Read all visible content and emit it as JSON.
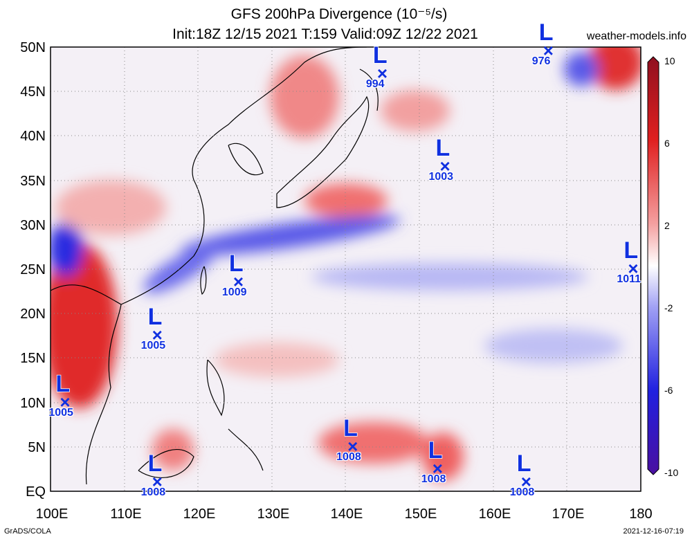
{
  "header": {
    "title_line1": "GFS 200hPa Divergence (10⁻⁵/s)",
    "title_line2": "Init:18Z 12/15 2021 T:159 Valid:09Z 12/22 2021",
    "site": "weather-models.info"
  },
  "axes": {
    "lat_labels": [
      "50N",
      "45N",
      "40N",
      "35N",
      "30N",
      "25N",
      "20N",
      "15N",
      "10N",
      "5N",
      "EQ"
    ],
    "lon_labels": [
      "100E",
      "110E",
      "120E",
      "130E",
      "140E",
      "150E",
      "160E",
      "170E",
      "180"
    ]
  },
  "colorbar": {
    "labels": [
      "10",
      "6",
      "2",
      "-2",
      "-6",
      "-10"
    ],
    "colors": [
      "#b01020",
      "#e02020",
      "#f08080",
      "#ffffff",
      "#8080f0",
      "#2020e0",
      "#5010a0"
    ]
  },
  "lows": [
    {
      "label": "L",
      "pressure": "994",
      "lon": 145,
      "lat": 47
    },
    {
      "label": "L",
      "pressure": "976",
      "lon": 167.5,
      "lat": 49.5
    },
    {
      "label": "L",
      "pressure": "1003",
      "lon": 153.5,
      "lat": 36.5
    },
    {
      "label": "L",
      "pressure": "1009",
      "lon": 125.5,
      "lat": 23.5
    },
    {
      "label": "L",
      "pressure": "1011",
      "lon": 179,
      "lat": 25
    },
    {
      "label": "L",
      "pressure": "1005",
      "lon": 114.5,
      "lat": 17.5
    },
    {
      "label": "L",
      "pressure": "1005",
      "lon": 102,
      "lat": 10
    },
    {
      "label": "L",
      "pressure": "1008",
      "lon": 141,
      "lat": 5
    },
    {
      "label": "L",
      "pressure": "1008",
      "lon": 152.5,
      "lat": 2.5
    },
    {
      "label": "L",
      "pressure": "1008",
      "lon": 114.5,
      "lat": 1
    },
    {
      "label": "L",
      "pressure": "1008",
      "lon": 164.5,
      "lat": 1
    }
  ],
  "footer": {
    "left": "GrADS/COLA",
    "right": "2021-12-16-07:19"
  }
}
